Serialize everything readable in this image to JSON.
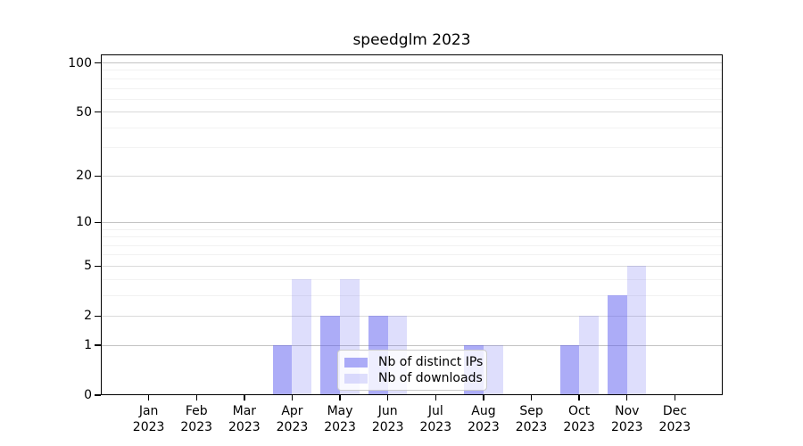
{
  "title": "speedglm 2023",
  "legend": {
    "items": [
      {
        "label": "Nb of distinct IPs"
      },
      {
        "label": "Nb of downloads"
      }
    ]
  },
  "y_axis": {
    "tick_labels": [
      "100",
      "50",
      "20",
      "10",
      "5",
      "2",
      "1",
      "0"
    ]
  },
  "x_axis": {
    "year_line": "2023",
    "month_lines": [
      "Jan",
      "Feb",
      "Mar",
      "Apr",
      "May",
      "Jun",
      "Jul",
      "Aug",
      "Sep",
      "Oct",
      "Nov",
      "Dec"
    ]
  },
  "chart_data": {
    "type": "bar",
    "title": "speedglm 2023",
    "categories": [
      "Jan 2023",
      "Feb 2023",
      "Mar 2023",
      "Apr 2023",
      "May 2023",
      "Jun 2023",
      "Jul 2023",
      "Aug 2023",
      "Sep 2023",
      "Oct 2023",
      "Nov 2023",
      "Dec 2023"
    ],
    "series": [
      {
        "name": "Nb of distinct IPs",
        "color": "rgba(90,90,240,0.5)",
        "values": [
          0,
          0,
          0,
          1,
          2,
          2,
          0,
          1,
          0,
          1,
          3,
          0
        ]
      },
      {
        "name": "Nb of downloads",
        "color": "rgba(90,90,240,0.2)",
        "values": [
          0,
          0,
          0,
          4,
          4,
          2,
          0,
          1,
          0,
          2,
          5,
          0
        ]
      }
    ],
    "xlabel": "",
    "ylabel": "",
    "yscale": "log1p",
    "ylim": [
      0,
      112.7
    ],
    "yticks": [
      0,
      1,
      2,
      5,
      10,
      20,
      50,
      100
    ],
    "yticks_minor": [
      3,
      4,
      6,
      7,
      8,
      9,
      30,
      40,
      60,
      70,
      80,
      90
    ],
    "grid": "horizontal",
    "legend_position": "inside-lower-center"
  }
}
